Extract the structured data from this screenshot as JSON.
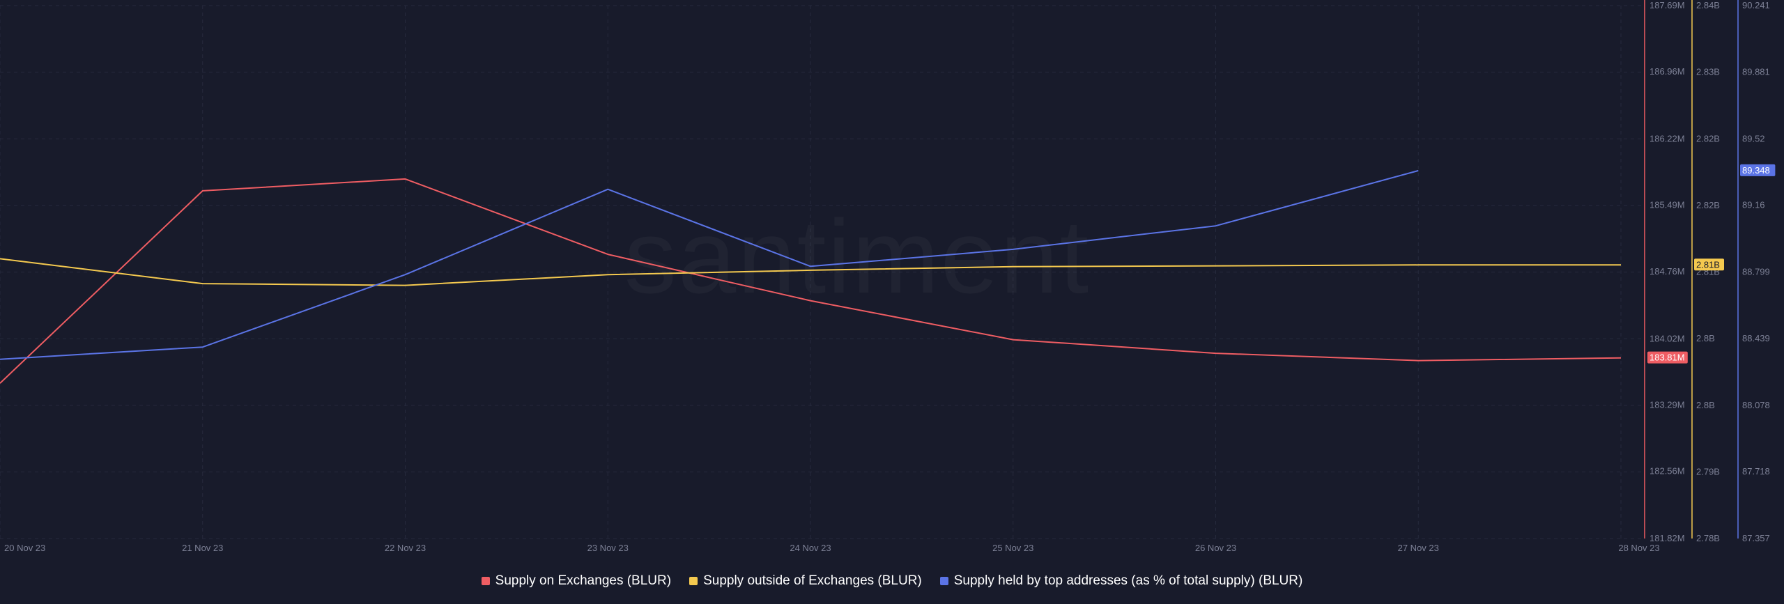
{
  "watermark": "santiment",
  "chart_data": {
    "type": "line",
    "x": [
      "20 Nov 23",
      "21 Nov 23",
      "22 Nov 23",
      "23 Nov 23",
      "24 Nov 23",
      "25 Nov 23",
      "26 Nov 23",
      "27 Nov 23",
      "28 Nov 23"
    ],
    "grid": true,
    "legend_position": "bottom-center",
    "series": [
      {
        "name": "Supply on Exchanges (BLUR)",
        "color": "#ef5d63",
        "axis": "left",
        "values": [
          183.53,
          185.65,
          185.78,
          184.95,
          184.44,
          184.01,
          183.86,
          183.78,
          183.81
        ],
        "last_value_label": "183.81M"
      },
      {
        "name": "Supply outside of Exchanges (BLUR)",
        "color": "#f4c94f",
        "axis": "middle",
        "values": [
          2.8115,
          2.8087,
          2.8085,
          2.8097,
          2.8102,
          2.8106,
          2.8107,
          2.8108,
          2.8108
        ],
        "last_value_label": "2.81B"
      },
      {
        "name": "Supply held by top addresses (as % of total supply) (BLUR)",
        "color": "#5b74e6",
        "axis": "right",
        "values": [
          88.327,
          88.393,
          88.785,
          89.247,
          88.83,
          88.922,
          89.049,
          89.348,
          null
        ],
        "last_value_label": "89.348"
      }
    ],
    "axes": [
      {
        "id": "left",
        "color": "#ef5d63",
        "range": [
          181.82,
          187.69
        ],
        "ticks": [
          187.69,
          186.96,
          186.22,
          185.49,
          184.76,
          184.02,
          183.29,
          182.56,
          181.82
        ],
        "tick_labels": [
          "187.69M",
          "186.96M",
          "186.22M",
          "185.49M",
          "184.76M",
          "184.02M",
          "183.29M",
          "182.56M",
          "181.82M"
        ]
      },
      {
        "id": "middle",
        "color": "#f4c94f",
        "range": [
          2.78,
          2.84
        ],
        "ticks": [
          2.84,
          2.8325,
          2.825,
          2.8175,
          2.81,
          2.8025,
          2.795,
          2.7875,
          2.78
        ],
        "tick_labels": [
          "2.84B",
          "2.83B",
          "2.82B",
          "2.82B",
          "2.81B",
          "2.8B",
          "2.8B",
          "2.79B",
          "2.78B"
        ]
      },
      {
        "id": "right",
        "color": "#5b74e6",
        "range": [
          87.357,
          90.241
        ],
        "ticks": [
          90.241,
          89.881,
          89.52,
          89.16,
          88.799,
          88.439,
          88.078,
          87.718,
          87.357
        ],
        "tick_labels": [
          "90.241",
          "89.881",
          "89.52",
          "89.16",
          "88.799",
          "88.439",
          "88.078",
          "87.718",
          "87.357"
        ]
      }
    ]
  }
}
